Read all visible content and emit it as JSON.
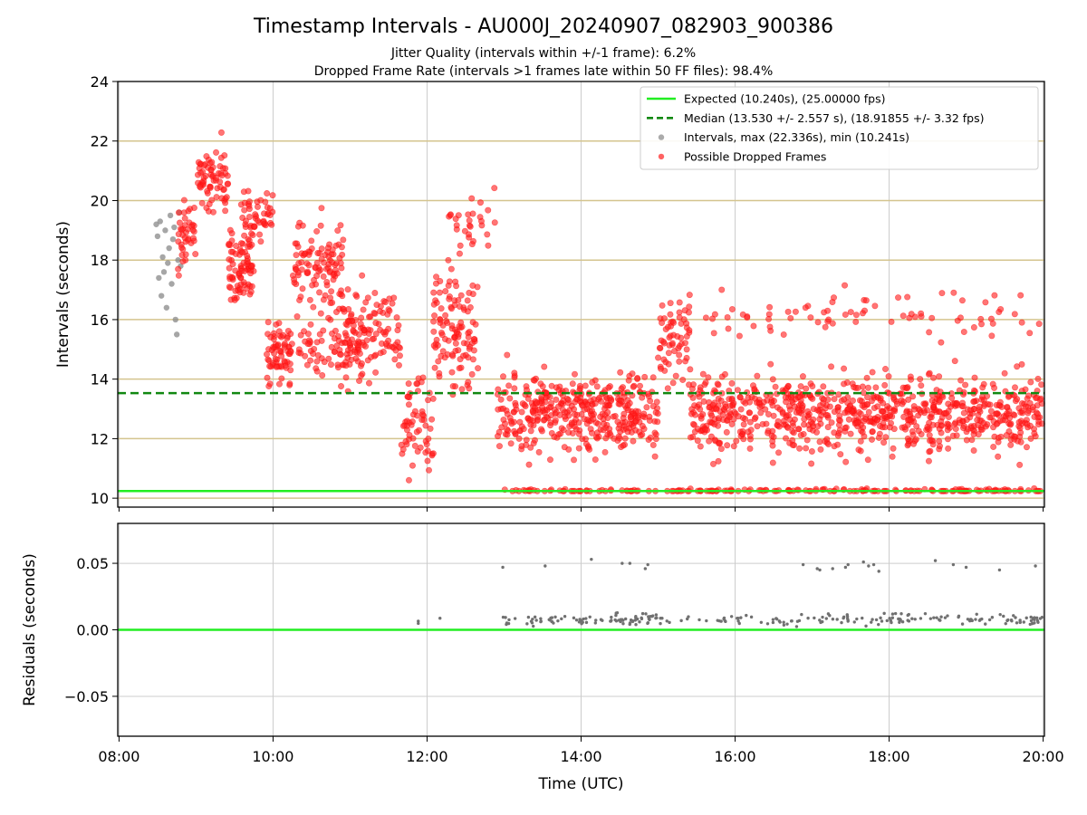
{
  "figure": {
    "title": "Timestamp Intervals - AU000J_20240907_082903_900386",
    "subtitle_1": "Jitter Quality (intervals within +/-1 frame): 6.2%",
    "subtitle_2": "Dropped Frame Rate (intervals >1 frames late within 50 FF files): 98.4%"
  },
  "chart_data": [
    {
      "type": "scatter",
      "ylabel": "Intervals (seconds)",
      "xlim": [
        "07:59",
        "20:01"
      ],
      "ylim": [
        9.7,
        24
      ],
      "yticks": [
        10,
        12,
        14,
        16,
        18,
        20,
        22,
        24
      ],
      "hgrid_values": [
        10,
        12,
        14,
        16,
        18,
        20,
        22
      ],
      "hgrid_color": "#d4c48e",
      "vgrid_color": "#cccccc",
      "grid": true,
      "legend_position": "top-right",
      "legend": [
        {
          "label": "Expected (10.240s), (25.00000 fps)",
          "kind": "line-solid",
          "color": "#22ee22"
        },
        {
          "label": "Median (13.530 +/- 2.557 s), (18.91855 +/- 3.32 fps)",
          "kind": "line-dashed",
          "color": "#118811"
        },
        {
          "label": "Intervals, max (22.336s), min (10.241s)",
          "kind": "marker",
          "color": "#888888"
        },
        {
          "label": "Possible Dropped Frames",
          "kind": "marker",
          "color": "#ff2020"
        }
      ],
      "lines": [
        {
          "name": "Expected",
          "y": 10.24,
          "color": "#22ee22",
          "style": "solid"
        },
        {
          "name": "Median",
          "y": 13.53,
          "color": "#118811",
          "style": "dashed"
        }
      ],
      "series": [
        {
          "name": "Intervals",
          "color": "#888888",
          "points": [
            [
              "08:29",
              19.2
            ],
            [
              "08:30",
              18.8
            ],
            [
              "08:31",
              17.4
            ],
            [
              "08:32",
              19.3
            ],
            [
              "08:33",
              16.8
            ],
            [
              "08:34",
              18.1
            ],
            [
              "08:35",
              17.6
            ],
            [
              "08:36",
              19.0
            ],
            [
              "08:37",
              16.4
            ],
            [
              "08:38",
              17.9
            ],
            [
              "08:39",
              18.4
            ],
            [
              "08:40",
              19.5
            ],
            [
              "08:41",
              17.2
            ],
            [
              "08:42",
              18.7
            ],
            [
              "08:43",
              19.1
            ],
            [
              "08:44",
              16.0
            ],
            [
              "08:45",
              15.5
            ],
            [
              "08:46",
              18.0
            ],
            [
              "08:47",
              19.6
            ],
            [
              "08:48",
              17.8
            ]
          ]
        },
        {
          "name": "Possible Dropped Frames",
          "color": "#ff2020",
          "segments": [
            {
              "start": "08:45",
              "end": "09:00",
              "n": 40,
              "center": 18.8,
              "spread": 1.0
            },
            {
              "start": "09:00",
              "end": "09:25",
              "n": 70,
              "center": 20.6,
              "spread": 0.9
            },
            {
              "start": "09:25",
              "end": "09:45",
              "n": 80,
              "center": 17.8,
              "spread": 1.0
            },
            {
              "start": "09:35",
              "end": "10:00",
              "n": 50,
              "center": 19.3,
              "spread": 0.8
            },
            {
              "start": "09:55",
              "end": "10:15",
              "n": 70,
              "center": 15.0,
              "spread": 1.0
            },
            {
              "start": "10:15",
              "end": "10:55",
              "n": 110,
              "center": 17.7,
              "spread": 1.3
            },
            {
              "start": "10:20",
              "end": "11:10",
              "n": 70,
              "center": 15.0,
              "spread": 0.8
            },
            {
              "start": "10:55",
              "end": "11:40",
              "n": 110,
              "center": 15.6,
              "spread": 1.2
            },
            {
              "start": "11:40",
              "end": "12:05",
              "n": 60,
              "center": 12.6,
              "spread": 1.6
            },
            {
              "start": "12:05",
              "end": "12:40",
              "n": 110,
              "center": 15.8,
              "spread": 1.7
            },
            {
              "start": "12:15",
              "end": "12:55",
              "n": 30,
              "center": 19.2,
              "spread": 0.7
            },
            {
              "start": "12:55",
              "end": "13:15",
              "n": 50,
              "center": 12.8,
              "spread": 1.3
            },
            {
              "start": "13:15",
              "end": "15:00",
              "n": 340,
              "center": 12.9,
              "spread": 1.1
            },
            {
              "start": "15:00",
              "end": "15:25",
              "n": 60,
              "center": 15.3,
              "spread": 1.2
            },
            {
              "start": "15:25",
              "end": "20:00",
              "n": 780,
              "center": 12.8,
              "spread": 1.1
            },
            {
              "start": "13:00",
              "end": "20:00",
              "n": 180,
              "center": 10.25,
              "spread": 0.05
            },
            {
              "start": "15:20",
              "end": "20:00",
              "n": 80,
              "center": 16.2,
              "spread": 0.6
            }
          ]
        }
      ]
    },
    {
      "type": "scatter",
      "xlabel": "Time (UTC)",
      "ylabel": "Residuals (seconds)",
      "xlim": [
        "07:59",
        "20:01"
      ],
      "ylim": [
        -0.08,
        0.08
      ],
      "yticks": [
        -0.05,
        0.0,
        0.05
      ],
      "ytick_labels": [
        "−0.05",
        "0.00",
        "0.05"
      ],
      "xticks": [
        "08:00",
        "10:00",
        "12:00",
        "14:00",
        "16:00",
        "18:00",
        "20:00"
      ],
      "grid": true,
      "lines": [
        {
          "name": "Zero",
          "y": 0.0,
          "color": "#22ee22",
          "style": "solid"
        }
      ],
      "series": [
        {
          "name": "Residuals",
          "color": "#707070",
          "high_points": [
            [
              "12:59",
              0.047
            ],
            [
              "13:32",
              0.048
            ],
            [
              "14:08",
              0.053
            ],
            [
              "14:32",
              0.05
            ],
            [
              "14:38",
              0.05
            ],
            [
              "14:50",
              0.046
            ],
            [
              "14:52",
              0.049
            ],
            [
              "16:53",
              0.049
            ],
            [
              "17:04",
              0.046
            ],
            [
              "17:06",
              0.045
            ],
            [
              "17:16",
              0.046
            ],
            [
              "17:26",
              0.047
            ],
            [
              "17:28",
              0.049
            ],
            [
              "17:40",
              0.051
            ],
            [
              "17:44",
              0.048
            ],
            [
              "17:48",
              0.049
            ],
            [
              "17:52",
              0.044
            ],
            [
              "18:36",
              0.052
            ],
            [
              "18:50",
              0.049
            ],
            [
              "19:00",
              0.047
            ],
            [
              "19:26",
              0.045
            ],
            [
              "19:54",
              0.048
            ]
          ],
          "low_segments": [
            {
              "start": "11:52",
              "end": "11:54",
              "n": 2,
              "center": 0.007,
              "spread": 0.002
            },
            {
              "start": "12:10",
              "end": "12:12",
              "n": 1,
              "center": 0.009,
              "spread": 0.001
            },
            {
              "start": "12:58",
              "end": "13:30",
              "n": 18,
              "center": 0.007,
              "spread": 0.004
            },
            {
              "start": "13:30",
              "end": "15:00",
              "n": 70,
              "center": 0.008,
              "spread": 0.004
            },
            {
              "start": "15:00",
              "end": "16:50",
              "n": 40,
              "center": 0.007,
              "spread": 0.004
            },
            {
              "start": "16:50",
              "end": "20:00",
              "n": 110,
              "center": 0.008,
              "spread": 0.004
            }
          ]
        }
      ]
    }
  ]
}
